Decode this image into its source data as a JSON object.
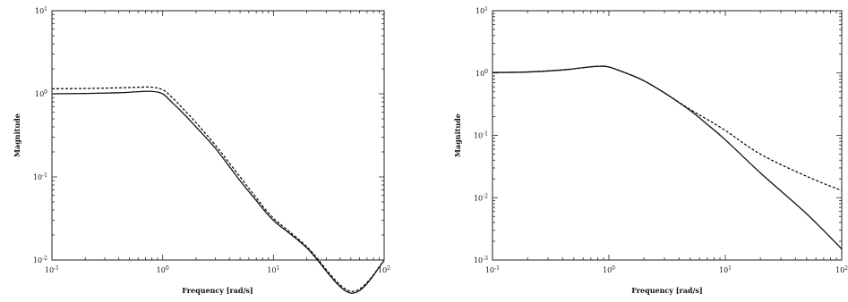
{
  "chart_data": [
    {
      "type": "line",
      "xscale": "log",
      "yscale": "log",
      "xlim": [
        0.1,
        100
      ],
      "ylim": [
        0.01,
        10
      ],
      "xlabel": "Frequency [rad/s]",
      "ylabel": "Magnitude",
      "xticks": [
        "10-1",
        "10^0",
        "10^1",
        "10^2"
      ],
      "yticks": [
        "10^1",
        "10^0",
        "10-1",
        "10-2"
      ],
      "grid": false,
      "series": [
        {
          "style": "solid",
          "x": [
            0.1,
            0.2,
            0.4,
            0.6,
            0.8,
            1.0,
            1.2,
            1.5,
            2,
            3,
            5,
            7,
            10,
            20,
            50,
            100
          ],
          "y": [
            1.0,
            1.01,
            1.03,
            1.06,
            1.07,
            1.0,
            0.8,
            0.6,
            0.4,
            0.22,
            0.09,
            0.052,
            0.03,
            0.014,
            0.004,
            0.0098
          ]
        },
        {
          "style": "dashed",
          "x": [
            0.1,
            0.2,
            0.4,
            0.6,
            0.8,
            1.0,
            1.2,
            1.5,
            2,
            3,
            5,
            7,
            10,
            20,
            50,
            100
          ],
          "y": [
            1.15,
            1.16,
            1.18,
            1.2,
            1.2,
            1.12,
            0.92,
            0.68,
            0.45,
            0.24,
            0.1,
            0.056,
            0.032,
            0.0145,
            0.0042,
            0.0098
          ]
        }
      ]
    },
    {
      "type": "line",
      "xscale": "log",
      "yscale": "log",
      "xlim": [
        0.1,
        100
      ],
      "ylim": [
        0.001,
        10
      ],
      "xlabel": "Frequency [rad/s]",
      "ylabel": "Magnitude",
      "xticks": [
        "10-1",
        "10^0",
        "10^1",
        "10^2"
      ],
      "yticks": [
        "10^1",
        "10^0",
        "10-1",
        "10-2",
        "10-3"
      ],
      "grid": false,
      "series": [
        {
          "style": "solid",
          "x": [
            0.1,
            0.2,
            0.4,
            0.6,
            0.8,
            1.0,
            1.5,
            2,
            3,
            5,
            7,
            10,
            20,
            50,
            100
          ],
          "y": [
            1.02,
            1.04,
            1.12,
            1.22,
            1.28,
            1.25,
            0.95,
            0.75,
            0.48,
            0.25,
            0.15,
            0.085,
            0.025,
            0.0055,
            0.0015
          ]
        },
        {
          "style": "dashed",
          "x": [
            0.1,
            0.2,
            0.4,
            0.6,
            0.8,
            1.0,
            1.5,
            2,
            3,
            5,
            7,
            10,
            20,
            50,
            100
          ],
          "y": [
            1.02,
            1.04,
            1.12,
            1.22,
            1.28,
            1.25,
            0.95,
            0.75,
            0.48,
            0.26,
            0.18,
            0.12,
            0.05,
            0.022,
            0.013
          ]
        }
      ]
    }
  ]
}
